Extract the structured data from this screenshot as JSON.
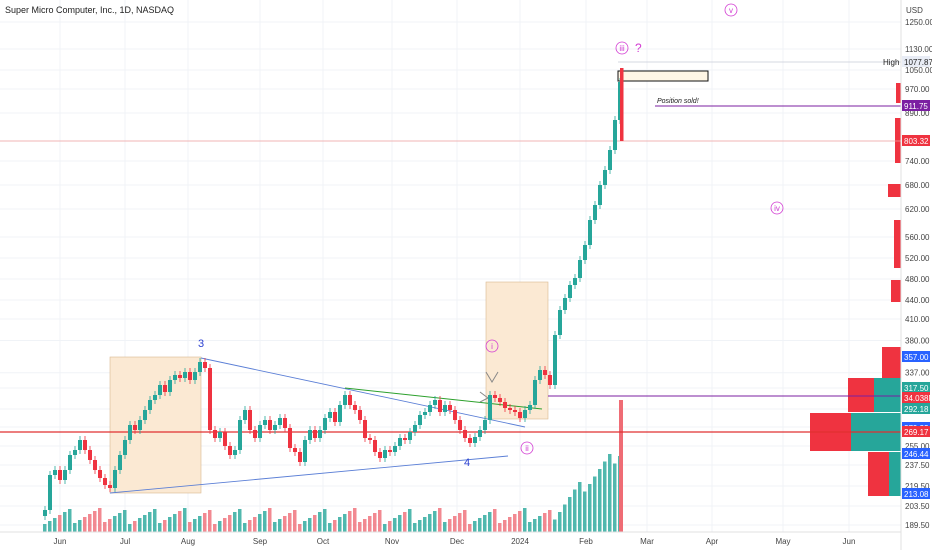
{
  "header": {
    "title": "Super Micro Computer, Inc., 1D, NASDAQ",
    "currency": "USD"
  },
  "colors": {
    "up": "#26a69a",
    "down": "#ef3340",
    "purple_line": "#7b1fa2",
    "support_red": "#e03030",
    "blue_line": "#5b7fd6",
    "green_line": "#2ca02c",
    "wave_magenta": "#d23bd2",
    "wave_blue": "#2a3fd0",
    "box_fill": "#fbe9d3"
  },
  "chart_data": {
    "type": "candlestick",
    "symbol": "SMCI",
    "interval": "1D",
    "x_labels": [
      "Jun",
      "Jul",
      "Aug",
      "Sep",
      "Oct",
      "Nov",
      "Dec",
      "2024",
      "Feb",
      "Mar",
      "Apr",
      "May",
      "Jun"
    ],
    "y_ticks": [
      189.5,
      203.5,
      219.5,
      237.5,
      255.0,
      275.0,
      292.18,
      317.5,
      337.0,
      380.0,
      410.0,
      440.0,
      480.0,
      520.0,
      560.0,
      620.0,
      680.0,
      740.0,
      803.32,
      890.0,
      970.0,
      1050.0,
      1130.0,
      1250.0
    ],
    "y_tick_labels": [
      "189.50",
      "203.50",
      "219.50",
      "237.50",
      "255.00",
      "275.00",
      "292.18",
      "317.50",
      "337.00",
      "380.00",
      "410.00",
      "440.00",
      "480.00",
      "520.00",
      "560.00",
      "620.00",
      "680.00",
      "740.00",
      "803.32",
      "890.00",
      "970.00",
      "1050.00",
      "1130.00",
      "1250.00"
    ],
    "price_tags": [
      {
        "label": "High",
        "value": "1077.87",
        "style": "light"
      },
      {
        "label": "",
        "value": "911.75",
        "style": "purple"
      },
      {
        "label": "",
        "value": "803.32",
        "style": "red"
      },
      {
        "label": "",
        "value": "357.00",
        "style": "blue"
      },
      {
        "label": "",
        "value": "317.50",
        "style": "green"
      },
      {
        "label": "",
        "value": "34.038M",
        "style": "red"
      },
      {
        "label": "",
        "value": "292.18",
        "style": "green"
      },
      {
        "label": "",
        "value": "279.32",
        "style": "blue"
      },
      {
        "label": "",
        "value": "269.17",
        "style": "red"
      },
      {
        "label": "",
        "value": "246.44",
        "style": "blue"
      },
      {
        "label": "",
        "value": "213.08",
        "style": "blue"
      }
    ],
    "horizontal_lines": [
      {
        "name": "position-sold-line",
        "value": 911.75,
        "color": "purple"
      },
      {
        "name": "red-resistance-line",
        "value": 803.32,
        "color": "red_light"
      },
      {
        "name": "purple-support-line",
        "value": 300.0,
        "color": "purple"
      },
      {
        "name": "red-support-line",
        "value": 269.17,
        "color": "red"
      },
      {
        "name": "high-line",
        "value": 1077.87,
        "color": "gray"
      }
    ],
    "wave_labels": {
      "w3": "3",
      "w4": "4",
      "wi": "i",
      "wii": "ii",
      "wiii": "iii",
      "wiv": "iv",
      "wv": "v",
      "question": "?"
    },
    "annotations": {
      "position_sold": "Position sold!"
    },
    "grid": true
  }
}
